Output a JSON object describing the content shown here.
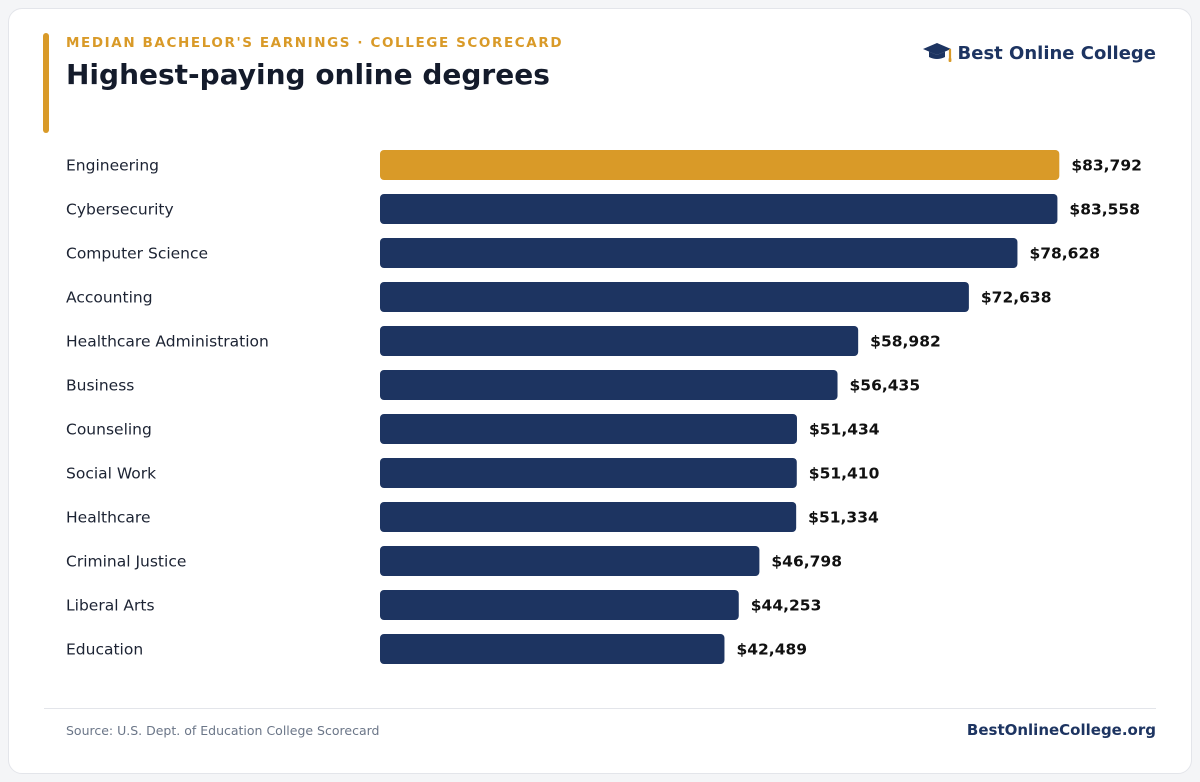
{
  "header": {
    "kicker": "MEDIAN BACHELOR'S EARNINGS · COLLEGE SCORECARD",
    "title": "Highest-paying online degrees",
    "brand_name": "Best Online College",
    "brand_icon": "graduation-cap-icon"
  },
  "footer": {
    "source": "Source: U.S. Dept. of Education College Scorecard",
    "site": "BestOnlineCollege.org"
  },
  "colors": {
    "highlight": "#d99a28",
    "bar": "#1d3461",
    "label": "#1c2333",
    "value": "#111111"
  },
  "chart_data": {
    "type": "bar",
    "orientation": "horizontal",
    "title": "Highest-paying online degrees",
    "xlim": [
      0,
      84000
    ],
    "grid": false,
    "highlight_index": 0,
    "categories": [
      "Engineering",
      "Cybersecurity",
      "Computer Science",
      "Accounting",
      "Healthcare Administration",
      "Business",
      "Counseling",
      "Social Work",
      "Healthcare",
      "Criminal Justice",
      "Liberal Arts",
      "Education"
    ],
    "values": [
      83792,
      83558,
      78628,
      72638,
      58982,
      56435,
      51434,
      51410,
      51334,
      46798,
      44253,
      42489
    ],
    "value_labels": [
      "$83,792",
      "$83,558",
      "$78,628",
      "$72,638",
      "$58,982",
      "$56,435",
      "$51,434",
      "$51,410",
      "$51,334",
      "$46,798",
      "$44,253",
      "$42,489"
    ]
  }
}
